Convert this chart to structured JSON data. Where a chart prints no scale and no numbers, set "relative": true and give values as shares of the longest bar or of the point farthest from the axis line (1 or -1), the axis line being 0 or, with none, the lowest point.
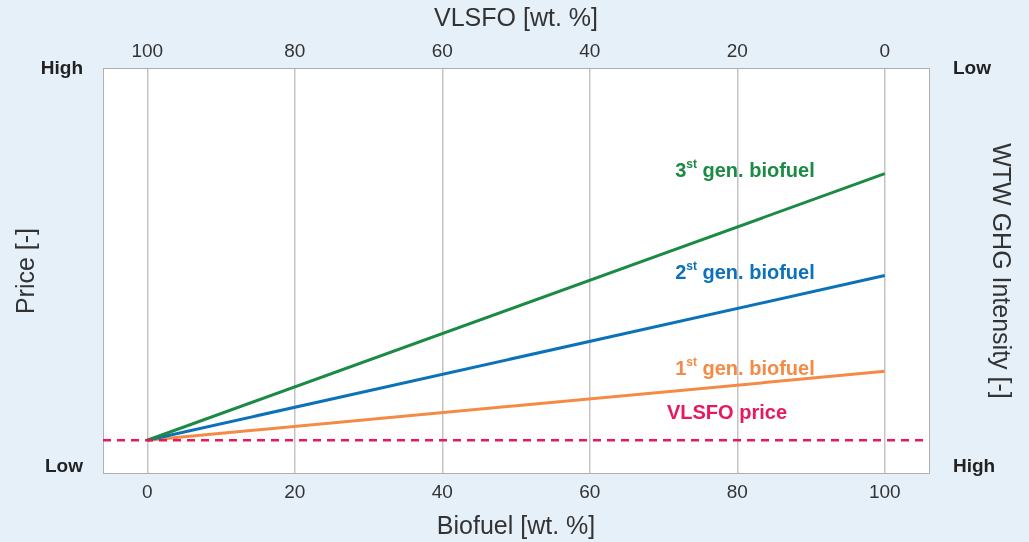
{
  "chart_data": {
    "type": "line",
    "relative": true,
    "xlabel": "Biofuel [wt. %]",
    "ylabel": "Price [-]",
    "x2label": "VLSFO [wt. %]",
    "y2label": "WTW GHG Intensity [-]",
    "x": [
      0,
      100
    ],
    "xlim": [
      -6,
      106
    ],
    "xticks": [
      0,
      20,
      40,
      60,
      80,
      100
    ],
    "x2lim": [
      106,
      -6
    ],
    "x2ticks": [
      100,
      80,
      60,
      40,
      20,
      0
    ],
    "annotations": [
      "High",
      "Low",
      "Low",
      "High"
    ],
    "grid": "x",
    "legend": false,
    "marker": "none",
    "line_style": "solid",
    "series": [
      {
        "name": "3$^{st}$ gen. biofuel",
        "color": "#1b8a43",
        "values": [
          0.11,
          1
        ]
      },
      {
        "name": "2$^{st}$ gen. biofuel",
        "color": "#0b72b9",
        "values": [
          0.11,
          0.66
        ]
      },
      {
        "name": "1$^{st}$ gen. biofuel",
        "color": "#f58a45",
        "values": [
          0.11,
          0.34
        ]
      }
    ],
    "ref_lines": [
      {
        "axis": "y",
        "value": 0.11,
        "label": "VLSFO price",
        "color": "#e8185e",
        "line_style": "dashed"
      }
    ]
  }
}
